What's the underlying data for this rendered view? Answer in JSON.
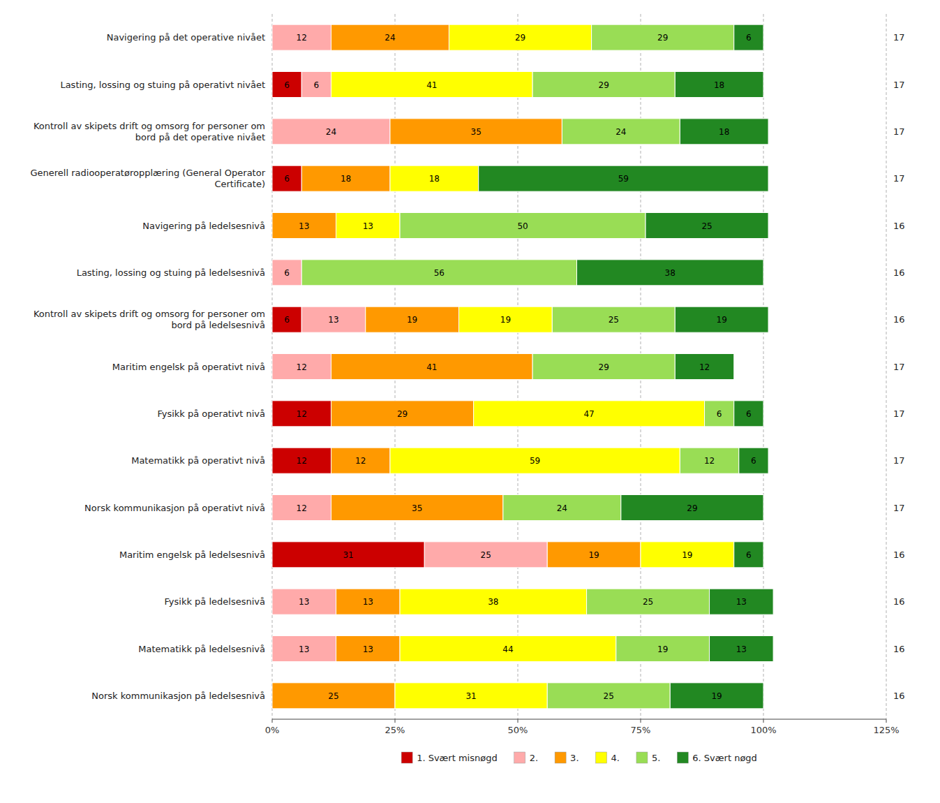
{
  "chart_data": {
    "type": "bar",
    "orientation": "horizontal",
    "stacked": true,
    "data_labels": true,
    "grid": true,
    "legend": "bottom",
    "categories": [
      "Navigering på det operative nivået",
      "Lasting, lossing og stuing på operativt nivået",
      "Kontroll av skipets drift og omsorg for personer om\nbord på det operative nivået",
      "Generell radiooperatøropplæring (General Operator\nCertificate)",
      "Navigering på ledelsesnivå",
      "Lasting, lossing og stuing på ledelsesnivå",
      "Kontroll av skipets drift og omsorg for personer om\nbord på ledelsesnivå",
      "Maritim engelsk på operativt nivå",
      "Fysikk på operativt nivå",
      "Matematikk på operativt nivå",
      "Norsk kommunikasjon på operativt nivå",
      "Maritim engelsk på ledelsesnivå",
      "Fysikk på ledelsesnivå",
      "Matematikk på ledelsesnivå",
      "Norsk kommunikasjon på ledelsesnivå"
    ],
    "n_values": [
      17,
      17,
      17,
      17,
      16,
      16,
      16,
      17,
      17,
      17,
      17,
      16,
      16,
      16,
      16
    ],
    "series": [
      {
        "name": "1. Svært misnøgd",
        "color": "#cc0000",
        "values": [
          0,
          6,
          0,
          6,
          0,
          0,
          6,
          0,
          12,
          12,
          0,
          31,
          0,
          0,
          0
        ]
      },
      {
        "name": "2.",
        "color": "#ffaaaa",
        "values": [
          12,
          6,
          24,
          0,
          0,
          6,
          13,
          12,
          0,
          0,
          12,
          25,
          13,
          13,
          0
        ]
      },
      {
        "name": "3.",
        "color": "#ff9900",
        "values": [
          24,
          0,
          35,
          18,
          13,
          0,
          19,
          41,
          29,
          12,
          35,
          19,
          13,
          13,
          25
        ]
      },
      {
        "name": "4.",
        "color": "#ffff00",
        "values": [
          29,
          41,
          0,
          18,
          13,
          0,
          19,
          0,
          47,
          59,
          0,
          19,
          38,
          44,
          31
        ]
      },
      {
        "name": "5.",
        "color": "#99dd55",
        "values": [
          29,
          29,
          24,
          0,
          50,
          56,
          25,
          29,
          6,
          12,
          24,
          0,
          25,
          19,
          25
        ]
      },
      {
        "name": "6. Svært nøgd",
        "color": "#228822",
        "values": [
          6,
          18,
          18,
          59,
          25,
          38,
          19,
          12,
          6,
          6,
          29,
          6,
          13,
          13,
          19
        ]
      }
    ],
    "xlim": [
      0,
      125
    ],
    "xticks": [
      {
        "value": 0,
        "label": "0%"
      },
      {
        "value": 25,
        "label": "25%"
      },
      {
        "value": 50,
        "label": "50%"
      },
      {
        "value": 75,
        "label": "75%"
      },
      {
        "value": 100,
        "label": "100%"
      },
      {
        "value": 125,
        "label": "125%"
      }
    ]
  }
}
